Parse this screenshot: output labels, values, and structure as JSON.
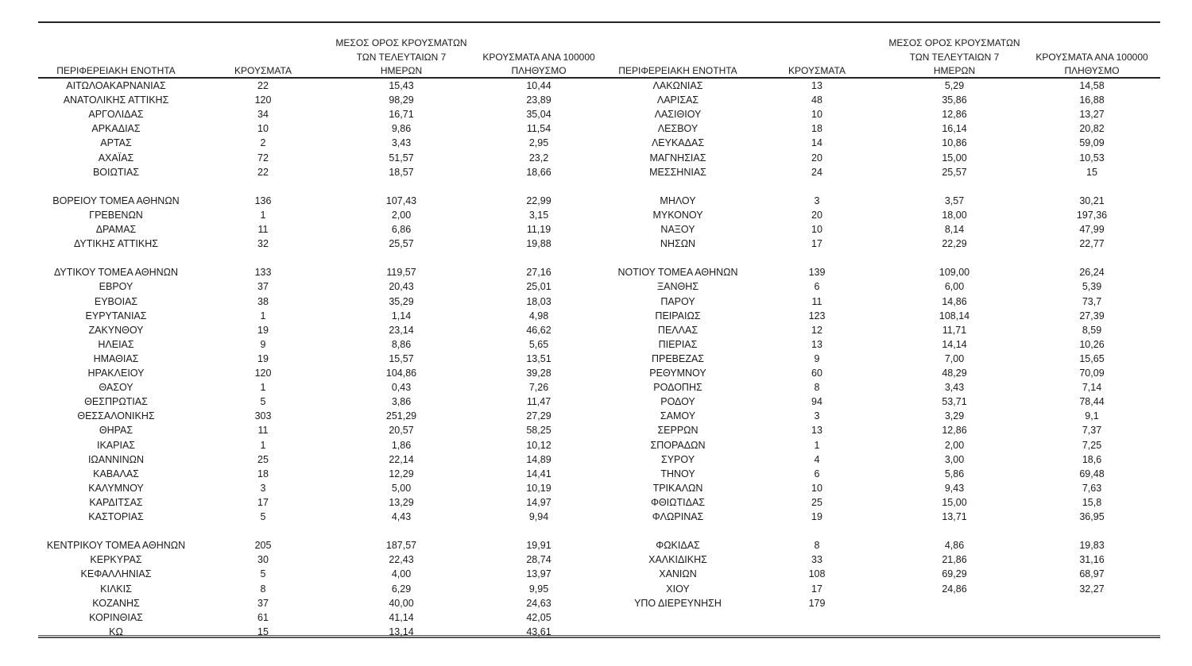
{
  "header": {
    "region": "ΠΕΡΙΦΕΡΕΙΑΚΗ ΕΝΟΤΗΤΑ",
    "cases": "ΚΡΟΥΣΜΑΤΑ",
    "avg_line1": "ΜΕΣΟΣ ΟΡΟΣ ΚΡΟΥΣΜΑΤΩΝ",
    "avg_line2": "ΤΩΝ ΤΕΛΕΥΤΑΙΩΝ 7",
    "avg_line3": "ΗΜΕΡΩΝ",
    "per100k_line1": "ΚΡΟΥΣΜΑΤΑ ΑΝΑ 100000",
    "per100k_line2": "ΠΛΗΘΥΣΜΟ"
  },
  "left": {
    "groups": [
      [
        [
          "ΑΙΤΩΛΟΑΚΑΡΝΑΝΙΑΣ",
          "22",
          "15,43",
          "10,44"
        ],
        [
          "ΑΝΑΤΟΛΙΚΗΣ ΑΤΤΙΚΗΣ",
          "120",
          "98,29",
          "23,89"
        ],
        [
          "ΑΡΓΟΛΙΔΑΣ",
          "34",
          "16,71",
          "35,04"
        ],
        [
          "ΑΡΚΑΔΙΑΣ",
          "10",
          "9,86",
          "11,54"
        ],
        [
          "ΑΡΤΑΣ",
          "2",
          "3,43",
          "2,95"
        ],
        [
          "ΑΧΑΪΑΣ",
          "72",
          "51,57",
          "23,2"
        ],
        [
          "ΒΟΙΩΤΙΑΣ",
          "22",
          "18,57",
          "18,66"
        ]
      ],
      [
        [
          "ΒΟΡΕΙΟΥ ΤΟΜΕΑ ΑΘΗΝΩΝ",
          "136",
          "107,43",
          "22,99"
        ],
        [
          "ΓΡΕΒΕΝΩΝ",
          "1",
          "2,00",
          "3,15"
        ],
        [
          "ΔΡΑΜΑΣ",
          "11",
          "6,86",
          "11,19"
        ],
        [
          "ΔΥΤΙΚΗΣ ΑΤΤΙΚΗΣ",
          "32",
          "25,57",
          "19,88"
        ]
      ],
      [
        [
          "ΔΥΤΙΚΟΥ ΤΟΜΕΑ ΑΘΗΝΩΝ",
          "133",
          "119,57",
          "27,16"
        ],
        [
          "ΕΒΡΟΥ",
          "37",
          "20,43",
          "25,01"
        ],
        [
          "ΕΥΒΟΙΑΣ",
          "38",
          "35,29",
          "18,03"
        ],
        [
          "ΕΥΡΥΤΑΝΙΑΣ",
          "1",
          "1,14",
          "4,98"
        ],
        [
          "ΖΑΚΥΝΘΟΥ",
          "19",
          "23,14",
          "46,62"
        ],
        [
          "ΗΛΕΙΑΣ",
          "9",
          "8,86",
          "5,65"
        ],
        [
          "ΗΜΑΘΙΑΣ",
          "19",
          "15,57",
          "13,51"
        ],
        [
          "ΗΡΑΚΛΕΙΟΥ",
          "120",
          "104,86",
          "39,28"
        ],
        [
          "ΘΑΣΟΥ",
          "1",
          "0,43",
          "7,26"
        ],
        [
          "ΘΕΣΠΡΩΤΙΑΣ",
          "5",
          "3,86",
          "11,47"
        ],
        [
          "ΘΕΣΣΑΛΟΝΙΚΗΣ",
          "303",
          "251,29",
          "27,29"
        ],
        [
          "ΘΗΡΑΣ",
          "11",
          "20,57",
          "58,25"
        ],
        [
          "ΙΚΑΡΙΑΣ",
          "1",
          "1,86",
          "10,12"
        ],
        [
          "ΙΩΑΝΝΙΝΩΝ",
          "25",
          "22,14",
          "14,89"
        ],
        [
          "ΚΑΒΑΛΑΣ",
          "18",
          "12,29",
          "14,41"
        ],
        [
          "ΚΑΛΥΜΝΟΥ",
          "3",
          "5,00",
          "10,19"
        ],
        [
          "ΚΑΡΔΙΤΣΑΣ",
          "17",
          "13,29",
          "14,97"
        ],
        [
          "ΚΑΣΤΟΡΙΑΣ",
          "5",
          "4,43",
          "9,94"
        ]
      ],
      [
        [
          "ΚΕΝΤΡΙΚΟΥ ΤΟΜΕΑ ΑΘΗΝΩΝ",
          "205",
          "187,57",
          "19,91"
        ],
        [
          "ΚΕΡΚΥΡΑΣ",
          "30",
          "22,43",
          "28,74"
        ],
        [
          "ΚΕΦΑΛΛΗΝΙΑΣ",
          "5",
          "4,00",
          "13,97"
        ],
        [
          "ΚΙΛΚΙΣ",
          "8",
          "6,29",
          "9,95"
        ],
        [
          "ΚΟΖΑΝΗΣ",
          "37",
          "40,00",
          "24,63"
        ],
        [
          "ΚΟΡΙΝΘΙΑΣ",
          "61",
          "41,14",
          "42,05"
        ],
        [
          "ΚΩ",
          "15",
          "13,14",
          "43,61"
        ]
      ]
    ]
  },
  "right": {
    "groups": [
      [
        [
          "ΛΑΚΩΝΙΑΣ",
          "13",
          "5,29",
          "14,58"
        ],
        [
          "ΛΑΡΙΣΑΣ",
          "48",
          "35,86",
          "16,88"
        ],
        [
          "ΛΑΣΙΘΙΟΥ",
          "10",
          "12,86",
          "13,27"
        ],
        [
          "ΛΕΣΒΟΥ",
          "18",
          "16,14",
          "20,82"
        ],
        [
          "ΛΕΥΚΑΔΑΣ",
          "14",
          "10,86",
          "59,09"
        ],
        [
          "ΜΑΓΝΗΣΙΑΣ",
          "20",
          "15,00",
          "10,53"
        ],
        [
          "ΜΕΣΣΗΝΙΑΣ",
          "24",
          "25,57",
          "15"
        ]
      ],
      [
        [
          "ΜΗΛΟΥ",
          "3",
          "3,57",
          "30,21"
        ],
        [
          "ΜΥΚΟΝΟΥ",
          "20",
          "18,00",
          "197,36"
        ],
        [
          "ΝΑΞΟΥ",
          "10",
          "8,14",
          "47,99"
        ],
        [
          "ΝΗΣΩΝ",
          "17",
          "22,29",
          "22,77"
        ]
      ],
      [
        [
          "ΝΟΤΙΟΥ ΤΟΜΕΑ ΑΘΗΝΩΝ",
          "139",
          "109,00",
          "26,24"
        ],
        [
          "ΞΑΝΘΗΣ",
          "6",
          "6,00",
          "5,39"
        ],
        [
          "ΠΑΡΟΥ",
          "11",
          "14,86",
          "73,7"
        ],
        [
          "ΠΕΙΡΑΙΩΣ",
          "123",
          "108,14",
          "27,39"
        ],
        [
          "ΠΕΛΛΑΣ",
          "12",
          "11,71",
          "8,59"
        ],
        [
          "ΠΙΕΡΙΑΣ",
          "13",
          "14,14",
          "10,26"
        ],
        [
          "ΠΡΕΒΕΖΑΣ",
          "9",
          "7,00",
          "15,65"
        ],
        [
          "ΡΕΘΥΜΝΟΥ",
          "60",
          "48,29",
          "70,09"
        ],
        [
          "ΡΟΔΟΠΗΣ",
          "8",
          "3,43",
          "7,14"
        ],
        [
          "ΡΟΔΟΥ",
          "94",
          "53,71",
          "78,44"
        ],
        [
          "ΣΑΜΟΥ",
          "3",
          "3,29",
          "9,1"
        ],
        [
          "ΣΕΡΡΩΝ",
          "13",
          "12,86",
          "7,37"
        ],
        [
          "ΣΠΟΡΑΔΩΝ",
          "1",
          "2,00",
          "7,25"
        ],
        [
          "ΣΥΡΟΥ",
          "4",
          "3,00",
          "18,6"
        ],
        [
          "ΤΗΝΟΥ",
          "6",
          "5,86",
          "69,48"
        ],
        [
          "ΤΡΙΚΑΛΩΝ",
          "10",
          "9,43",
          "7,63"
        ],
        [
          "ΦΘΙΩΤΙΔΑΣ",
          "25",
          "15,00",
          "15,8"
        ],
        [
          "ΦΛΩΡΙΝΑΣ",
          "19",
          "13,71",
          "36,95"
        ]
      ],
      [
        [
          "ΦΩΚΙΔΑΣ",
          "8",
          "4,86",
          "19,83"
        ],
        [
          "ΧΑΛΚΙΔΙΚΗΣ",
          "33",
          "21,86",
          "31,16"
        ],
        [
          "ΧΑΝΙΩΝ",
          "108",
          "69,29",
          "68,97"
        ],
        [
          "ΧΙΟΥ",
          "17",
          "24,86",
          "32,27"
        ],
        [
          "ΥΠΟ ΔΙΕΡΕΥΝΗΣΗ",
          "179",
          "",
          ""
        ]
      ]
    ]
  }
}
